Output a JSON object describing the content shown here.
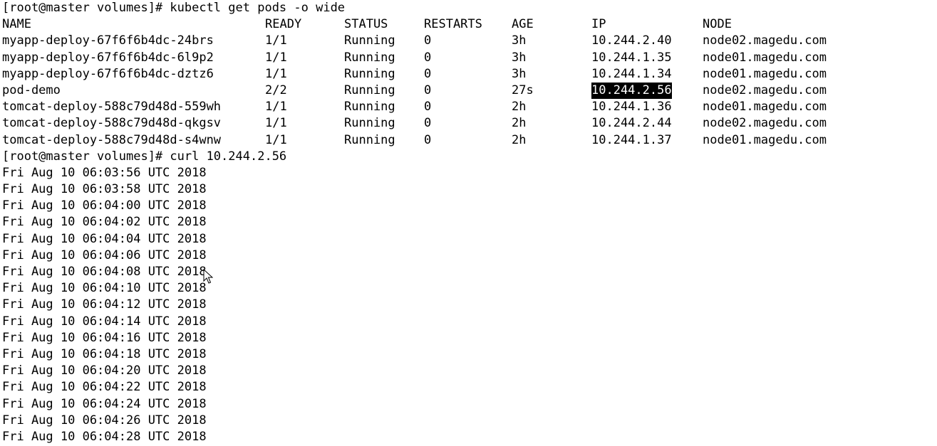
{
  "terminal": {
    "prompt1": "[root@master volumes]# kubectl get pods -o wide",
    "headers": {
      "name": "NAME",
      "ready": "READY",
      "status": "STATUS",
      "restarts": "RESTARTS",
      "age": "AGE",
      "ip": "IP",
      "node": "NODE"
    },
    "pods": [
      {
        "name": "myapp-deploy-67f6f6b4dc-24brs",
        "ready": "1/1",
        "status": "Running",
        "restarts": "0",
        "age": "3h",
        "ip": "10.244.2.40",
        "node": "node02.magedu.com"
      },
      {
        "name": "myapp-deploy-67f6f6b4dc-6l9p2",
        "ready": "1/1",
        "status": "Running",
        "restarts": "0",
        "age": "3h",
        "ip": "10.244.1.35",
        "node": "node01.magedu.com"
      },
      {
        "name": "myapp-deploy-67f6f6b4dc-dztz6",
        "ready": "1/1",
        "status": "Running",
        "restarts": "0",
        "age": "3h",
        "ip": "10.244.1.34",
        "node": "node01.magedu.com"
      },
      {
        "name": "pod-demo",
        "ready": "2/2",
        "status": "Running",
        "restarts": "0",
        "age": "27s",
        "ip": "10.244.2.56",
        "node": "node02.magedu.com",
        "ip_selected": true
      },
      {
        "name": "tomcat-deploy-588c79d48d-559wh",
        "ready": "1/1",
        "status": "Running",
        "restarts": "0",
        "age": "2h",
        "ip": "10.244.1.36",
        "node": "node01.magedu.com"
      },
      {
        "name": "tomcat-deploy-588c79d48d-qkgsv",
        "ready": "1/1",
        "status": "Running",
        "restarts": "0",
        "age": "2h",
        "ip": "10.244.2.44",
        "node": "node02.magedu.com"
      },
      {
        "name": "tomcat-deploy-588c79d48d-s4wnw",
        "ready": "1/1",
        "status": "Running",
        "restarts": "0",
        "age": "2h",
        "ip": "10.244.1.37",
        "node": "node01.magedu.com"
      }
    ],
    "prompt2": "[root@master volumes]# curl 10.244.2.56",
    "output_lines": [
      "Fri Aug 10 06:03:56 UTC 2018",
      "Fri Aug 10 06:03:58 UTC 2018",
      "Fri Aug 10 06:04:00 UTC 2018",
      "Fri Aug 10 06:04:02 UTC 2018",
      "Fri Aug 10 06:04:04 UTC 2018",
      "Fri Aug 10 06:04:06 UTC 2018",
      "Fri Aug 10 06:04:08 UTC 2018",
      "Fri Aug 10 06:04:10 UTC 2018",
      "Fri Aug 10 06:04:12 UTC 2018",
      "Fri Aug 10 06:04:14 UTC 2018",
      "Fri Aug 10 06:04:16 UTC 2018",
      "Fri Aug 10 06:04:18 UTC 2018",
      "Fri Aug 10 06:04:20 UTC 2018",
      "Fri Aug 10 06:04:22 UTC 2018",
      "Fri Aug 10 06:04:24 UTC 2018",
      "Fri Aug 10 06:04:26 UTC 2018",
      "Fri Aug 10 06:04:28 UTC 2018"
    ],
    "icons": {
      "mouse_cursor": "mouse-pointer-icon"
    },
    "colors": {
      "background": "#ffffff",
      "text": "#000000",
      "selection_bg": "#000000",
      "selection_text": "#ffffff"
    }
  }
}
